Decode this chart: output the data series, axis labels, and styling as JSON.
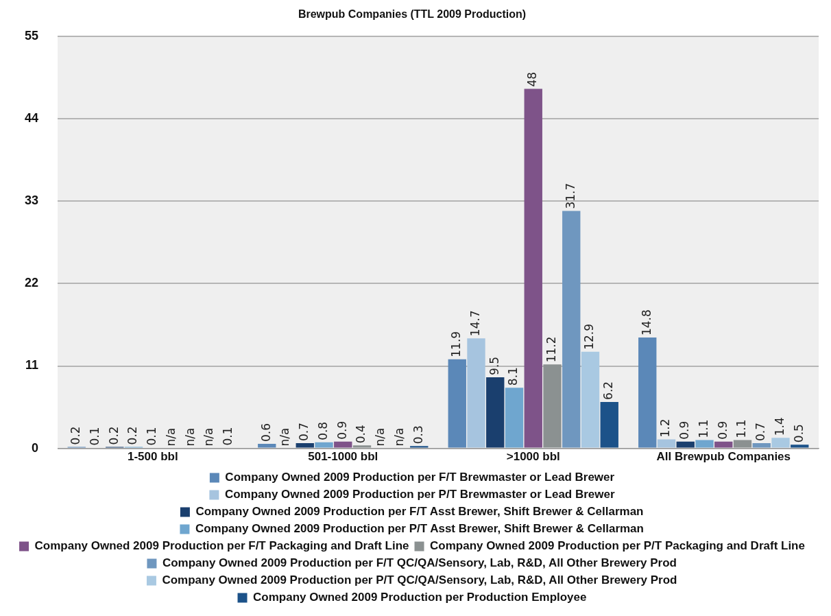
{
  "chart_data": {
    "type": "bar",
    "title": "Brewpub Companies (TTL 2009 Production)",
    "categories": [
      "1-500 bbl",
      "501-1000 bbl",
      ">1000 bbl",
      "All Brewpub Companies"
    ],
    "series": [
      {
        "name": "Company Owned 2009 Production per F/T Brewmaster or Lead Brewer",
        "color": "#5b88b8",
        "values": [
          0.2,
          0.6,
          11.9,
          14.8
        ],
        "value_labels": [
          "0.2",
          "0.6",
          "11.9",
          "14.8"
        ]
      },
      {
        "name": "Company Owned 2009 Production per P/T Brewmaster or Lead Brewer",
        "color": "#a6c4df",
        "values": [
          0.1,
          null,
          14.7,
          1.2
        ],
        "value_labels": [
          "0.1",
          "n/a",
          "14.7",
          "1.2"
        ]
      },
      {
        "name": "Company Owned 2009 Production per F/T Asst Brewer, Shift Brewer & Cellarman",
        "color": "#1a3f6e",
        "values": [
          0.2,
          0.7,
          9.5,
          0.9
        ],
        "value_labels": [
          "0.2",
          "0.7",
          "9.5",
          "0.9"
        ]
      },
      {
        "name": "Company Owned 2009 Production per P/T Asst Brewer, Shift Brewer & Cellarman",
        "color": "#6fa6cf",
        "values": [
          0.2,
          0.8,
          8.1,
          1.1
        ],
        "value_labels": [
          "0.2",
          "0.8",
          "8.1",
          "1.1"
        ]
      },
      {
        "name": "Company Owned 2009 Production per F/T Packaging and Draft Line",
        "color": "#7e5389",
        "values": [
          0.1,
          0.9,
          48,
          0.9
        ],
        "value_labels": [
          "0.1",
          "0.9",
          "48",
          "0.9"
        ]
      },
      {
        "name": "Company Owned 2009 Production per P/T Packaging and Draft Line",
        "color": "#8b9191",
        "values": [
          null,
          0.4,
          11.2,
          1.1
        ],
        "value_labels": [
          "n/a",
          "0.4",
          "11.2",
          "1.1"
        ]
      },
      {
        "name": "Company Owned 2009 Production per F/T QC/QA/Sensory, Lab, R&D, All Other Brewery Prod",
        "color": "#6f97bf",
        "values": [
          null,
          null,
          31.7,
          0.7
        ],
        "value_labels": [
          "n/a",
          "n/a",
          "31.7",
          "0.7"
        ]
      },
      {
        "name": "Company Owned 2009 Production per P/T QC/QA/Sensory, Lab, R&D, All Other Brewery Prod",
        "color": "#a9c9e2",
        "values": [
          null,
          null,
          12.9,
          1.4
        ],
        "value_labels": [
          "n/a",
          "n/a",
          "12.9",
          "1.4"
        ]
      },
      {
        "name": "Company Owned 2009 Production per Production Employee",
        "color": "#1c5289",
        "values": [
          0.1,
          0.3,
          6.2,
          0.5
        ],
        "value_labels": [
          "0.1",
          "0.3",
          "6.2",
          "0.5"
        ]
      }
    ],
    "ylim": [
      0,
      55
    ],
    "yticks": [
      0,
      11,
      22,
      33,
      44,
      55
    ],
    "grid": "y",
    "legend": "bottom"
  }
}
